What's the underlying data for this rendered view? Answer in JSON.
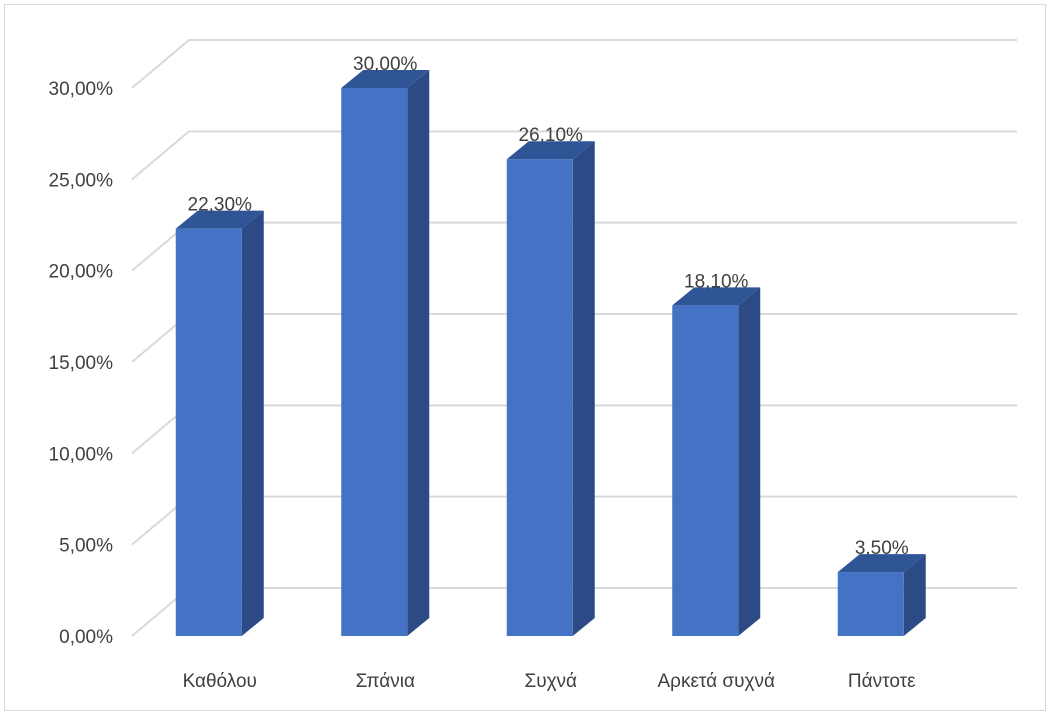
{
  "chart_data": {
    "type": "bar",
    "style": "3d-column",
    "categories": [
      "Καθόλου",
      "Σπάνια",
      "Συχνά",
      "Αρκετά συχνά",
      "Πάντοτε"
    ],
    "values": [
      22.3,
      30.0,
      26.1,
      18.1,
      3.5
    ],
    "data_labels": [
      "22,30%",
      "30,00%",
      "26,10%",
      "18,10%",
      "3,50%"
    ],
    "y_ticks": [
      0,
      5,
      10,
      15,
      20,
      25,
      30
    ],
    "y_tick_labels": [
      "0,00%",
      "5,00%",
      "10,00%",
      "15,00%",
      "20,00%",
      "25,00%",
      "30,00%"
    ],
    "ylim": [
      0,
      30
    ],
    "grid": true,
    "legend": "none",
    "colors": {
      "bar_front": "#4472c4",
      "bar_top": "#2f5597",
      "bar_side": "#2c4b86",
      "grid": "#d9d9d9",
      "text": "#404040"
    }
  }
}
